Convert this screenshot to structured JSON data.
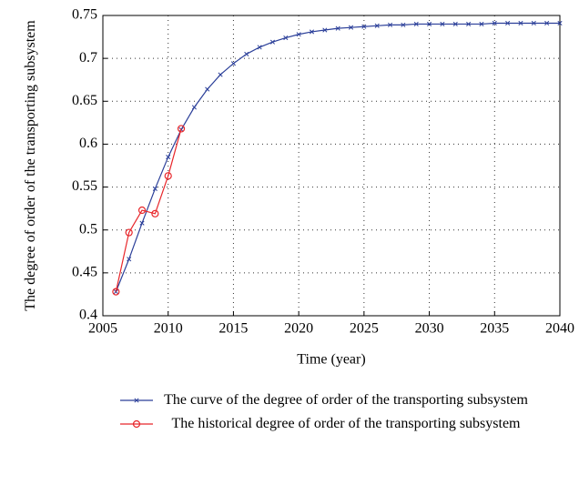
{
  "chart_data": {
    "type": "line",
    "xlabel": "Time (year)",
    "ylabel": "The degree of order of the transporting subsystem",
    "xlim": [
      2005,
      2040
    ],
    "xticks": [
      2005,
      2010,
      2015,
      2020,
      2025,
      2030,
      2035,
      2040
    ],
    "ylim": [
      0.4,
      0.75
    ],
    "yticks": [
      0.4,
      0.45,
      0.5,
      0.55,
      0.6,
      0.65,
      0.7,
      0.75
    ],
    "grid": true,
    "series": [
      {
        "name": "The curve of the degree of order of the transporting subsystem",
        "color": "#2b3f99",
        "marker": "x",
        "x": [
          2006,
          2007,
          2008,
          2009,
          2010,
          2011,
          2012,
          2013,
          2014,
          2015,
          2016,
          2017,
          2018,
          2019,
          2020,
          2021,
          2022,
          2023,
          2024,
          2025,
          2026,
          2027,
          2028,
          2029,
          2030,
          2031,
          2032,
          2033,
          2034,
          2035,
          2036,
          2037,
          2038,
          2039,
          2040
        ],
        "values": [
          0.428,
          0.466,
          0.508,
          0.548,
          0.585,
          0.617,
          0.643,
          0.664,
          0.681,
          0.694,
          0.705,
          0.713,
          0.719,
          0.724,
          0.728,
          0.731,
          0.733,
          0.735,
          0.736,
          0.737,
          0.738,
          0.739,
          0.739,
          0.74,
          0.74,
          0.74,
          0.74,
          0.74,
          0.74,
          0.741,
          0.741,
          0.741,
          0.741,
          0.741,
          0.741
        ]
      },
      {
        "name": "The historical degree of order of the transporting subsystem",
        "color": "#e8262a",
        "marker": "o",
        "x": [
          2006,
          2007,
          2008,
          2009,
          2010,
          2011
        ],
        "values": [
          0.428,
          0.497,
          0.523,
          0.519,
          0.563,
          0.618
        ]
      }
    ]
  }
}
